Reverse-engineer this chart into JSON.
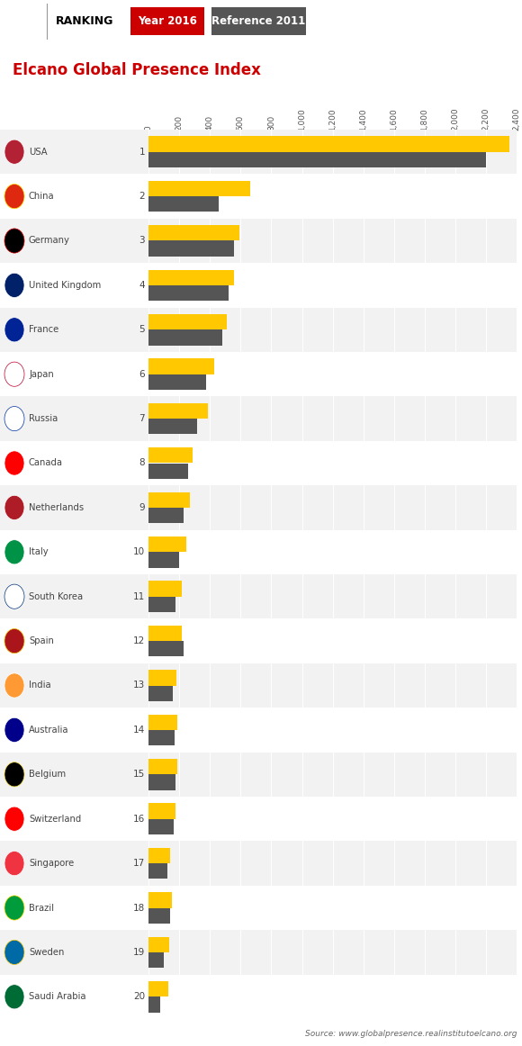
{
  "title": "Elcano Global Presence Index",
  "header_text": "RANKING",
  "year_label": "Year 2016",
  "reference_label": "Reference 2011",
  "source_text": "Source: www.globalpresence.realinstitutoelcano.org",
  "header_bg": "#FFC800",
  "year_bg": "#CC0000",
  "ref_bg": "#555555",
  "title_color": "#CC0000",
  "countries": [
    "USA",
    "China",
    "Germany",
    "United Kingdom",
    "France",
    "Japan",
    "Russia",
    "Canada",
    "Netherlands",
    "Italy",
    "South Korea",
    "Spain",
    "India",
    "Australia",
    "Belgium",
    "Switzerland",
    "Singapore",
    "Brazil",
    "Sweden",
    "Saudi Arabia"
  ],
  "ranks": [
    1,
    2,
    3,
    4,
    5,
    6,
    7,
    8,
    9,
    10,
    11,
    12,
    13,
    14,
    15,
    16,
    17,
    18,
    19,
    20
  ],
  "yellow_values": [
    2350,
    660,
    590,
    555,
    510,
    430,
    390,
    290,
    270,
    245,
    215,
    215,
    183,
    190,
    187,
    178,
    143,
    152,
    132,
    130
  ],
  "gray_values": [
    2200,
    460,
    555,
    520,
    480,
    375,
    315,
    260,
    230,
    200,
    175,
    230,
    158,
    168,
    175,
    162,
    122,
    142,
    100,
    78
  ],
  "yellow_color": "#FFC800",
  "gray_color": "#555555",
  "xlim": [
    0,
    2400
  ],
  "xticks": [
    0,
    200,
    400,
    600,
    800,
    1000,
    1200,
    1400,
    1600,
    1800,
    2000,
    2200,
    2400
  ],
  "bar_height": 0.35,
  "row_bg_odd": "#F2F2F2",
  "row_bg_even": "#FFFFFF",
  "fig_width": 5.8,
  "fig_height": 11.62
}
